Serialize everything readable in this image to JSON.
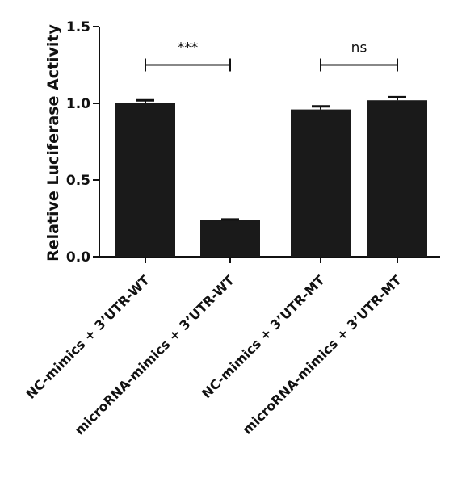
{
  "chart_data": {
    "type": "bar",
    "categories": [
      "NC-mimics + 3’UTR-WT",
      "microRNA-mimics + 3’UTR-WT",
      "NC-mimics + 3’UTR-MT",
      "microRNA-mimics + 3’UTR-MT"
    ],
    "values": [
      1.0,
      0.24,
      0.96,
      1.02
    ],
    "errors": [
      0.02,
      0.003,
      0.02,
      0.02
    ],
    "ylabel": "Relative Luciferase Activity",
    "xlabel": "",
    "ylim": [
      0,
      1.5
    ],
    "yticks": [
      "0.0",
      "0.5",
      "1.0",
      "1.5"
    ],
    "ytick_values": [
      0,
      0.5,
      1.0,
      1.5
    ],
    "bar_color": "#1a1a1a",
    "annotations": [
      {
        "pair": [
          0,
          1
        ],
        "text": "***",
        "y": 1.25
      },
      {
        "pair": [
          2,
          3
        ],
        "text": "ns",
        "y": 1.25
      }
    ]
  }
}
